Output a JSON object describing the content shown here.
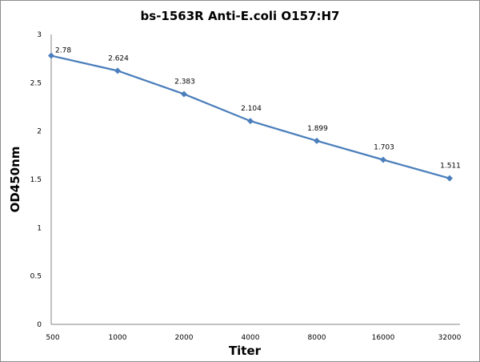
{
  "chart_data": {
    "type": "line",
    "title": "bs-1563R Anti-E.coli O157:H7",
    "xlabel": "Titer",
    "ylabel": "OD450nm",
    "categories": [
      "500",
      "1000",
      "2000",
      "4000",
      "8000",
      "16000",
      "32000"
    ],
    "series": [
      {
        "name": "OD450nm",
        "values": [
          2.78,
          2.624,
          2.383,
          2.104,
          1.899,
          1.703,
          1.511
        ],
        "labels": [
          "2.78",
          "2.624",
          "2.383",
          "2.104",
          "1.899",
          "1.703",
          "1.511"
        ],
        "color": "#4a7ebb",
        "marker": "diamond"
      }
    ],
    "yticks": [
      "0",
      "0.5",
      "1",
      "1.5",
      "2",
      "2.5",
      "3"
    ],
    "ylim": [
      0,
      3
    ],
    "grid": false,
    "legend": "none"
  }
}
